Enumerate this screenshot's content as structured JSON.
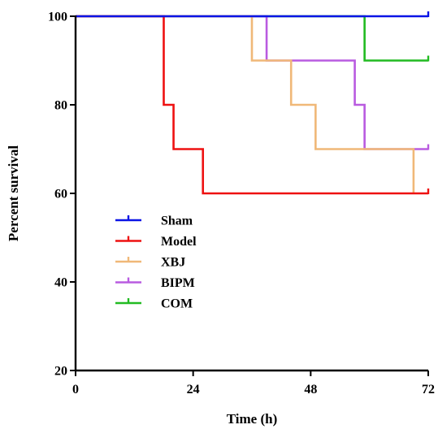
{
  "chart_data": {
    "type": "line",
    "subtype": "kaplan-meier-survival",
    "xlabel": "Time (h)",
    "ylabel": "Percent survival",
    "xlim": [
      0,
      72
    ],
    "ylim": [
      20,
      100
    ],
    "x_ticks": [
      0,
      24,
      48,
      72
    ],
    "y_ticks": [
      20,
      40,
      60,
      80,
      100
    ],
    "grid": false,
    "legend_position": "lower-left",
    "series": [
      {
        "name": "Sham",
        "color": "#0a14e6",
        "steps": [
          [
            0,
            100
          ],
          [
            72,
            100
          ]
        ],
        "censor": [
          [
            72,
            100
          ]
        ]
      },
      {
        "name": "Model",
        "color": "#ee1111",
        "steps": [
          [
            0,
            100
          ],
          [
            18,
            80
          ],
          [
            20,
            70
          ],
          [
            26,
            60
          ],
          [
            72,
            60
          ]
        ],
        "censor": [
          [
            72,
            60
          ]
        ]
      },
      {
        "name": "XBJ",
        "color": "#f0b878",
        "steps": [
          [
            0,
            100
          ],
          [
            36,
            90
          ],
          [
            44,
            80
          ],
          [
            49,
            70
          ],
          [
            69,
            60
          ],
          [
            69,
            60
          ]
        ],
        "censor": []
      },
      {
        "name": "BIPM",
        "color": "#b95be0",
        "steps": [
          [
            0,
            100
          ],
          [
            39,
            90
          ],
          [
            57,
            80
          ],
          [
            59,
            70
          ],
          [
            72,
            70
          ]
        ],
        "censor": [
          [
            72,
            70
          ]
        ]
      },
      {
        "name": "COM",
        "color": "#22bb22",
        "steps": [
          [
            0,
            100
          ],
          [
            59,
            90
          ],
          [
            72,
            90
          ]
        ],
        "censor": [
          [
            72,
            90
          ]
        ]
      }
    ]
  }
}
